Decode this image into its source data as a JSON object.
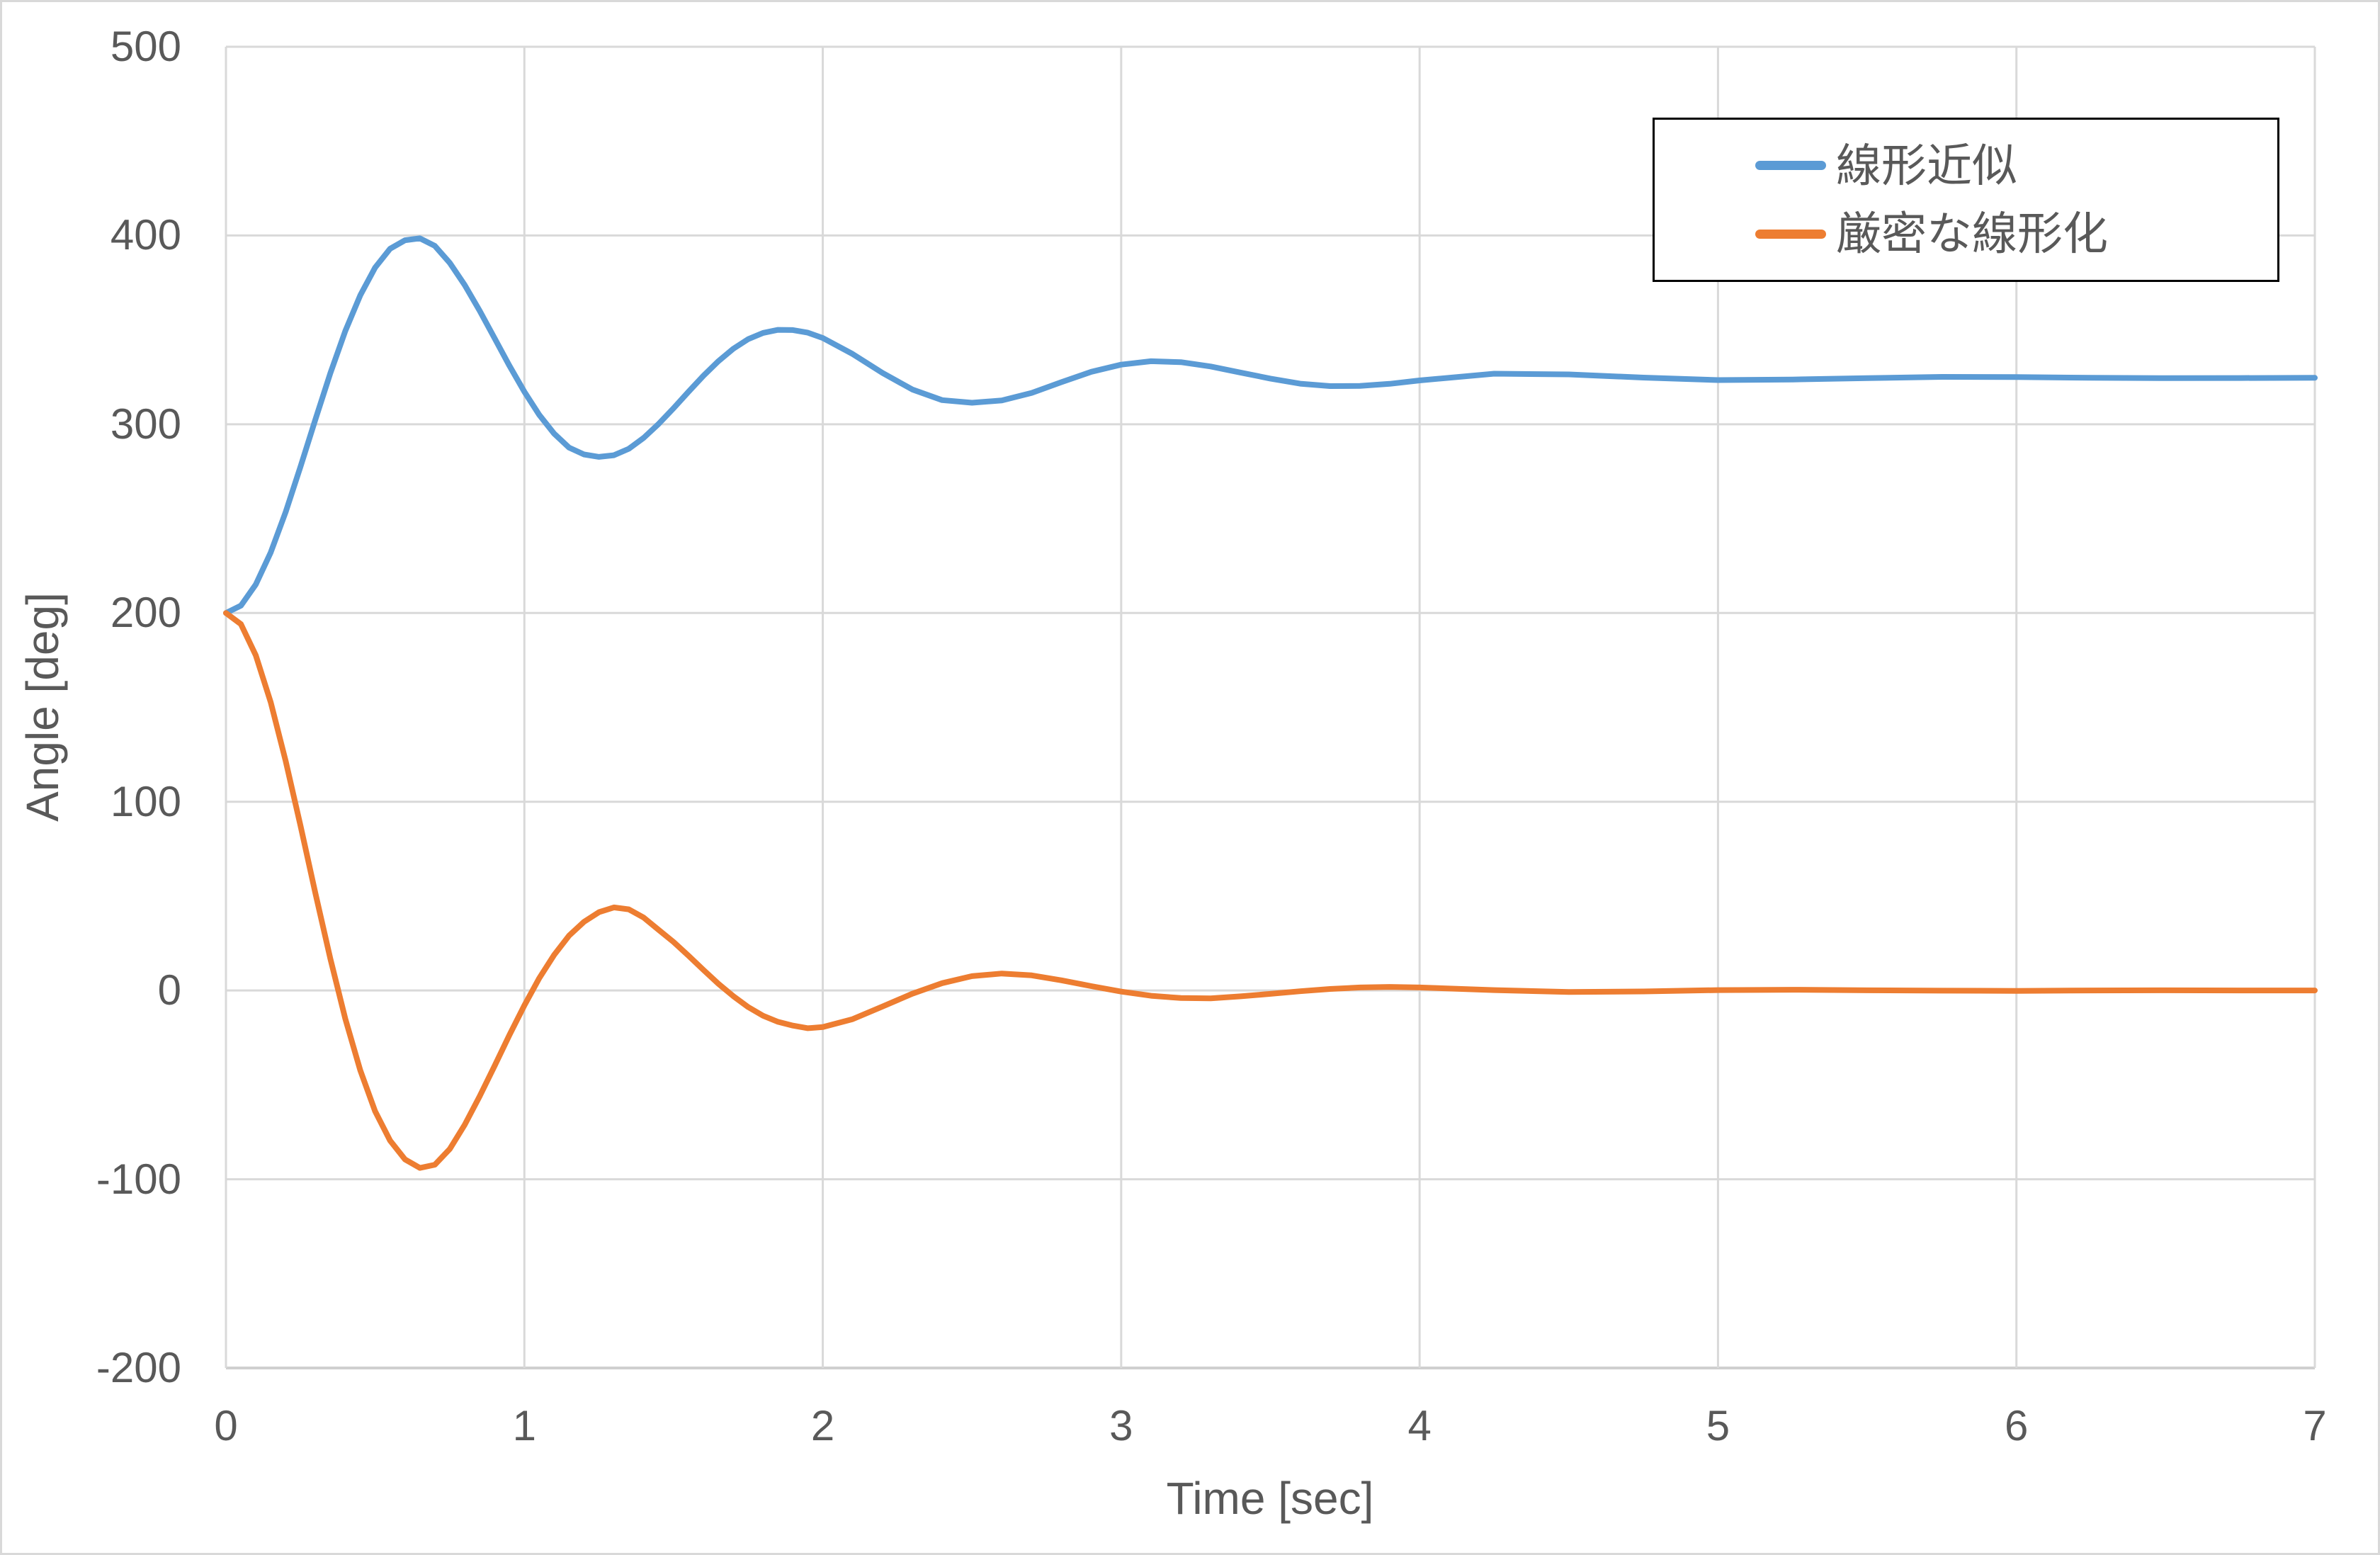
{
  "chart_data": {
    "type": "line",
    "title": "",
    "xlabel": "Time [sec]",
    "ylabel": "Angle [deg]",
    "xlim": [
      0,
      7
    ],
    "ylim": [
      -200,
      500
    ],
    "xticks": [
      0,
      1,
      2,
      3,
      4,
      5,
      6,
      7
    ],
    "yticks": [
      500,
      400,
      300,
      200,
      100,
      0,
      -100,
      -200
    ],
    "grid": true,
    "legend_position": "top-right",
    "style": {
      "grid_color": "#d9d9d9",
      "axis_color": "#cfcfcf",
      "text_color": "#595959",
      "legend_border_color": "#000000",
      "background_color": "#ffffff",
      "series_line_width": 8
    },
    "series": [
      {
        "name": "線形近似",
        "color": "#5B9BD5",
        "points": [
          [
            0,
            200
          ],
          [
            0.05,
            203.9
          ],
          [
            0.1,
            215.1
          ],
          [
            0.15,
            232.1
          ],
          [
            0.2,
            253.5
          ],
          [
            0.25,
            277.6
          ],
          [
            0.3,
            302.7
          ],
          [
            0.35,
            327.1
          ],
          [
            0.4,
            349.4
          ],
          [
            0.45,
            368.3
          ],
          [
            0.5,
            383
          ],
          [
            0.55,
            393
          ],
          [
            0.6,
            397.5
          ],
          [
            0.65,
            398.5
          ],
          [
            0.7,
            394.5
          ],
          [
            0.75,
            385.5
          ],
          [
            0.8,
            373.8
          ],
          [
            0.85,
            360.2
          ],
          [
            0.9,
            345.6
          ],
          [
            0.95,
            331
          ],
          [
            1,
            317.2
          ],
          [
            1.05,
            304.9
          ],
          [
            1.1,
            295
          ],
          [
            1.15,
            287.6
          ],
          [
            1.2,
            284
          ],
          [
            1.25,
            282.7
          ],
          [
            1.3,
            283.6
          ],
          [
            1.35,
            287
          ],
          [
            1.4,
            292.8
          ],
          [
            1.45,
            300.2
          ],
          [
            1.5,
            308.5
          ],
          [
            1.55,
            317.2
          ],
          [
            1.6,
            325.7
          ],
          [
            1.65,
            333.4
          ],
          [
            1.7,
            340
          ],
          [
            1.75,
            345.1
          ],
          [
            1.8,
            348.4
          ],
          [
            1.85,
            350
          ],
          [
            1.9,
            349.9
          ],
          [
            1.95,
            348.5
          ],
          [
            2,
            345.7
          ],
          [
            2.1,
            337.2
          ],
          [
            2.2,
            327.2
          ],
          [
            2.3,
            318.4
          ],
          [
            2.4,
            312.8
          ],
          [
            2.5,
            311.4
          ],
          [
            2.6,
            312.6
          ],
          [
            2.7,
            316.6
          ],
          [
            2.8,
            322.3
          ],
          [
            2.9,
            327.8
          ],
          [
            3,
            331.6
          ],
          [
            3.1,
            333.4
          ],
          [
            3.2,
            332.9
          ],
          [
            3.3,
            330.6
          ],
          [
            3.4,
            327.4
          ],
          [
            3.5,
            324.2
          ],
          [
            3.6,
            321.5
          ],
          [
            3.7,
            320.2
          ],
          [
            3.8,
            320.3
          ],
          [
            3.9,
            321.4
          ],
          [
            4,
            323.2
          ],
          [
            4.25,
            326.8
          ],
          [
            4.5,
            326.4
          ],
          [
            4.75,
            324.7
          ],
          [
            5,
            323.4
          ],
          [
            5.25,
            323.7
          ],
          [
            5.5,
            324.4
          ],
          [
            5.75,
            325.1
          ],
          [
            6,
            325
          ],
          [
            6.25,
            324.6
          ],
          [
            6.5,
            324.4
          ],
          [
            6.75,
            324.5
          ],
          [
            7,
            324.6
          ]
        ]
      },
      {
        "name": "厳密な線形化",
        "color": "#ED7D31",
        "points": [
          [
            0,
            200
          ],
          [
            0.05,
            194.1
          ],
          [
            0.1,
            177.6
          ],
          [
            0.15,
            152.7
          ],
          [
            0.2,
            121.6
          ],
          [
            0.25,
            87.2
          ],
          [
            0.3,
            51.3
          ],
          [
            0.35,
            16.8
          ],
          [
            0.4,
            -15
          ],
          [
            0.45,
            -42.3
          ],
          [
            0.5,
            -64
          ],
          [
            0.55,
            -79.5
          ],
          [
            0.6,
            -89.5
          ],
          [
            0.65,
            -94
          ],
          [
            0.7,
            -92.3
          ],
          [
            0.75,
            -84
          ],
          [
            0.8,
            -71.2
          ],
          [
            0.85,
            -56.1
          ],
          [
            0.9,
            -40
          ],
          [
            0.95,
            -23.6
          ],
          [
            1,
            -7.9
          ],
          [
            1.05,
            6.6
          ],
          [
            1.1,
            18.9
          ],
          [
            1.15,
            29.1
          ],
          [
            1.2,
            36.4
          ],
          [
            1.25,
            41.5
          ],
          [
            1.3,
            44
          ],
          [
            1.35,
            43
          ],
          [
            1.4,
            38.6
          ],
          [
            1.45,
            32.1
          ],
          [
            1.5,
            25.7
          ],
          [
            1.55,
            18.4
          ],
          [
            1.6,
            10.9
          ],
          [
            1.65,
            3.6
          ],
          [
            1.7,
            -3
          ],
          [
            1.75,
            -8.8
          ],
          [
            1.8,
            -13.4
          ],
          [
            1.85,
            -16.6
          ],
          [
            1.9,
            -18.6
          ],
          [
            1.95,
            -20
          ],
          [
            2,
            -19.4
          ],
          [
            2.1,
            -15.2
          ],
          [
            2.2,
            -8.5
          ],
          [
            2.3,
            -1.7
          ],
          [
            2.4,
            3.9
          ],
          [
            2.5,
            7.6
          ],
          [
            2.6,
            9
          ],
          [
            2.7,
            8
          ],
          [
            2.8,
            5.4
          ],
          [
            2.9,
            2.3
          ],
          [
            3,
            -0.6
          ],
          [
            3.1,
            -2.8
          ],
          [
            3.2,
            -4
          ],
          [
            3.3,
            -4.2
          ],
          [
            3.4,
            -3.1
          ],
          [
            3.5,
            -1.8
          ],
          [
            3.6,
            -0.4
          ],
          [
            3.7,
            0.8
          ],
          [
            3.8,
            1.6
          ],
          [
            3.9,
            1.9
          ],
          [
            4,
            1.6
          ],
          [
            4.25,
            0.2
          ],
          [
            4.5,
            -0.8
          ],
          [
            4.75,
            -0.5
          ],
          [
            5,
            0.2
          ],
          [
            5.25,
            0.4
          ],
          [
            5.5,
            0.1
          ],
          [
            5.75,
            -0.1
          ],
          [
            6,
            -0.2
          ],
          [
            6.25,
            0
          ],
          [
            6.5,
            0.1
          ],
          [
            6.75,
            0
          ],
          [
            7,
            0
          ]
        ]
      }
    ]
  }
}
